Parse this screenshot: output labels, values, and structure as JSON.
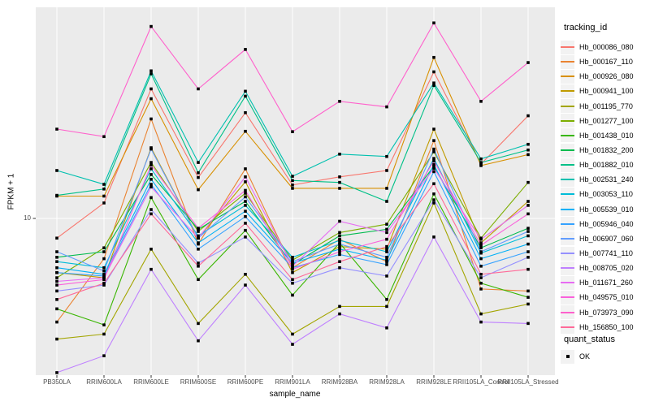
{
  "figure": {
    "background": "#FFFFFF",
    "panel_background": "#EBEBEB",
    "grid_color": "#FFFFFF",
    "tick_color": "#333333",
    "axis_text_color": "#4D4D4D",
    "point_color": "#000000",
    "key_background": "#F2F2F2"
  },
  "axes": {
    "x_title": "sample_name",
    "y_title": "FPKM + 1",
    "y_tick_label": "10"
  },
  "legend": {
    "tracking_title": "tracking_id",
    "quant_title": "quant_status",
    "quant_item_label": "OK"
  },
  "chart_data": {
    "type": "line",
    "title": "",
    "xlabel": "sample_name",
    "ylabel": "FPKM + 1",
    "y_scale": "log10",
    "y_breaks": [
      10
    ],
    "y_range_approx": [
      1.8,
      85
    ],
    "grid": true,
    "legend_position": "right",
    "marker": "small-black-square",
    "categories": [
      "PB350LA",
      "RRIM600LA",
      "RRIM600LE",
      "RRIM600SE",
      "RRIM600PE",
      "RRIM901LA",
      "RRIM928BA",
      "RRIM928LA",
      "RRIM928LE",
      "RRII105LA_Control",
      "RRII105LA_Stressed"
    ],
    "series": [
      {
        "name": "Hb_000086_080",
        "color": "#F8766D",
        "values": [
          8.1,
          11.8,
          40,
          15.5,
          31,
          14.3,
          15.6,
          16.7,
          48,
          17.9,
          30
        ]
      },
      {
        "name": "Hb_000167_110",
        "color": "#EA8331",
        "values": [
          3.3,
          6.5,
          29,
          7.6,
          17,
          5.9,
          8.0,
          6.3,
          23,
          4.7,
          4.6
        ]
      },
      {
        "name": "Hb_000926_080",
        "color": "#D89000",
        "values": [
          12.7,
          12.7,
          36,
          13.6,
          25.4,
          13.8,
          13.8,
          13.8,
          56,
          17.6,
          19.8
        ]
      },
      {
        "name": "Hb_000941_100",
        "color": "#C09B00",
        "values": [
          5.6,
          5.3,
          21.3,
          8.1,
          14.8,
          5.6,
          7.4,
          7.2,
          26,
          7.7,
          12
        ]
      },
      {
        "name": "Hb_001195_770",
        "color": "#A3A500",
        "values": [
          2.75,
          2.9,
          7.2,
          3.25,
          5.5,
          2.9,
          3.9,
          3.9,
          11.8,
          3.6,
          4.0
        ]
      },
      {
        "name": "Hb_001277_100",
        "color": "#7CAE00",
        "values": [
          5.3,
          7.3,
          18.2,
          8.7,
          13.1,
          6.4,
          8.6,
          9.4,
          20.4,
          8.1,
          14.7
        ]
      },
      {
        "name": "Hb_001438_010",
        "color": "#39B600",
        "values": [
          3.8,
          3.2,
          12.5,
          5.2,
          8.8,
          4.4,
          7.7,
          4.2,
          13,
          5.0,
          4.3
        ]
      },
      {
        "name": "Hb_001832_200",
        "color": "#00BB4E",
        "values": [
          6.6,
          7.0,
          16,
          8.9,
          12,
          6.1,
          8.3,
          8.9,
          17.5,
          7.3,
          9.0
        ]
      },
      {
        "name": "Hb_001882_010",
        "color": "#00C087",
        "values": [
          12.8,
          13.7,
          47,
          16.3,
          37,
          15,
          14.7,
          12,
          41.5,
          18.2,
          20.8
        ]
      },
      {
        "name": "Hb_002531_240",
        "color": "#00C0AF",
        "values": [
          16.7,
          14.4,
          48.5,
          18.2,
          39,
          15.7,
          19.9,
          19.4,
          42.6,
          18.9,
          22.1
        ]
      },
      {
        "name": "Hb_003053_110",
        "color": "#00BCD8",
        "values": [
          6.3,
          5.9,
          17,
          8.3,
          11.5,
          6.6,
          7.9,
          7.0,
          19,
          6.9,
          8.3
        ]
      },
      {
        "name": "Hb_005539_010",
        "color": "#00B0F6",
        "values": [
          5.9,
          5.5,
          15.2,
          7.7,
          10.8,
          6.2,
          7.2,
          6.4,
          17.8,
          6.5,
          7.6
        ]
      },
      {
        "name": "Hb_005946_040",
        "color": "#35A2FF",
        "values": [
          5.6,
          5.4,
          14.4,
          7.2,
          10.2,
          5.9,
          6.8,
          6.1,
          16.5,
          6.0,
          7.0
        ]
      },
      {
        "name": "Hb_006907_060",
        "color": "#619CFF",
        "values": [
          7.0,
          5.7,
          21,
          8.1,
          12.6,
          6.3,
          7.6,
          6.6,
          21,
          7.0,
          8.7
        ]
      },
      {
        "name": "Hb_007741_110",
        "color": "#9590FF",
        "values": [
          4.6,
          4.9,
          11,
          6.2,
          8.2,
          5.0,
          5.9,
          5.4,
          12.2,
          5.3,
          6.6
        ]
      },
      {
        "name": "Hb_008705_020",
        "color": "#BF80FF",
        "values": [
          1.92,
          2.3,
          5.8,
          2.7,
          4.9,
          2.6,
          3.6,
          3.1,
          8.2,
          3.3,
          3.25
        ]
      },
      {
        "name": "Hb_011671_260",
        "color": "#E76BF3",
        "values": [
          5.1,
          5.3,
          14,
          8.1,
          15.6,
          6.0,
          9.7,
          8.6,
          17.1,
          8.0,
          11.5
        ]
      },
      {
        "name": "Hb_049575_010",
        "color": "#FA62DB",
        "values": [
          4.9,
          5.2,
          17.7,
          9.0,
          13.5,
          5.8,
          7.0,
          8.0,
          18.5,
          7.5,
          10.5
        ]
      },
      {
        "name": "Hb_073973_090",
        "color": "#FF61CC",
        "values": [
          26,
          24,
          78,
          40,
          61,
          25.3,
          35,
          33,
          81,
          35,
          53
        ]
      },
      {
        "name": "Hb_156850_100",
        "color": "#FF6A98",
        "values": [
          4.2,
          5.0,
          10.5,
          6.0,
          9.5,
          5.2,
          6.3,
          7.4,
          14.5,
          5.5,
          5.8
        ]
      }
    ]
  }
}
